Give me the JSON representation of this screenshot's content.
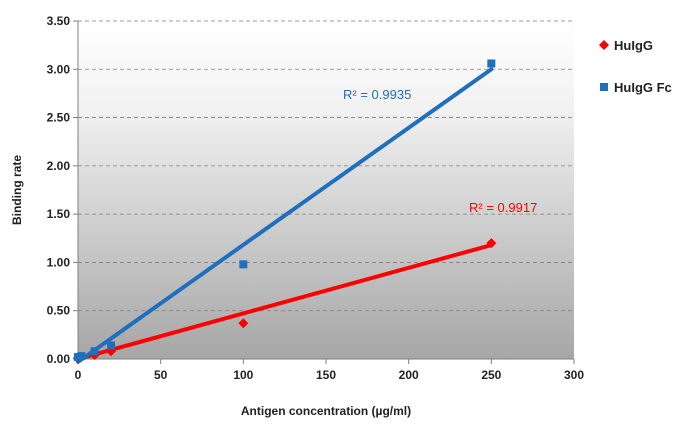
{
  "chart_data": {
    "type": "scatter",
    "title": "",
    "xlabel": "Antigen concentration (µg/ml)",
    "ylabel": "Binding rate",
    "xlim": [
      0,
      300
    ],
    "ylim": [
      0,
      3.5
    ],
    "x_ticks": [
      0,
      50,
      100,
      150,
      200,
      250,
      300
    ],
    "y_ticks": [
      0,
      0.5,
      1.0,
      1.5,
      2.0,
      2.5,
      3.0,
      3.5
    ],
    "x_tick_labels": [
      "0",
      "50",
      "100",
      "150",
      "200",
      "250",
      "300"
    ],
    "y_tick_labels": [
      "0.00",
      "0.50",
      "1.00",
      "1.50",
      "2.00",
      "2.50",
      "3.00",
      "3.50"
    ],
    "grid": "horizontal-dashed",
    "legend": "right",
    "series": [
      {
        "name": "HuIgG",
        "marker": "diamond",
        "color": "#ff0000",
        "x": [
          0,
          10,
          20,
          100,
          250
        ],
        "y": [
          0.01,
          0.04,
          0.08,
          0.37,
          1.2
        ],
        "trendline": {
          "x": [
            0,
            250
          ],
          "y": [
            0.0,
            1.18
          ]
        },
        "r2_label": "R² = 0.9917"
      },
      {
        "name": "HuIgG Fc",
        "marker": "square",
        "color": "#1f6fbf",
        "x": [
          0,
          2,
          10,
          20,
          100,
          250
        ],
        "y": [
          0.02,
          0.03,
          0.08,
          0.14,
          0.98,
          3.06
        ],
        "trendline": {
          "x": [
            0,
            250
          ],
          "y": [
            -0.03,
            3.0
          ]
        },
        "r2_label": "R² = 0.9935"
      }
    ]
  }
}
